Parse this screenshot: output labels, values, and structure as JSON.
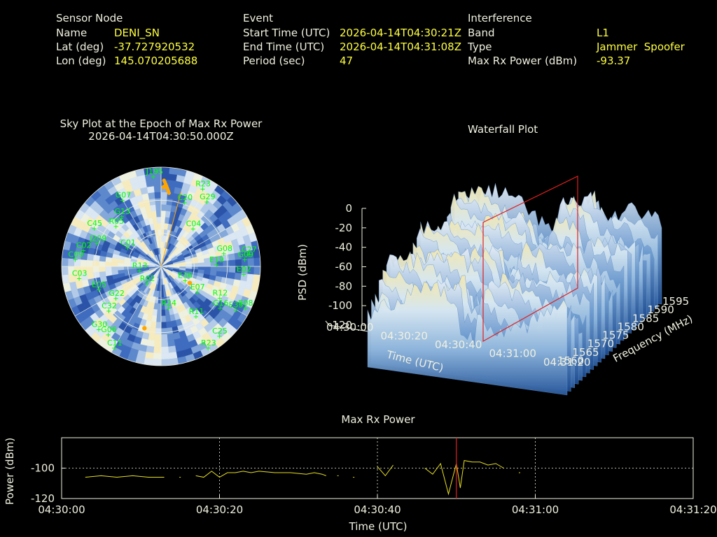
{
  "sensor": {
    "heading": "Sensor Node",
    "name_label": "Name",
    "name_value": "DENI_SN",
    "lat_label": "Lat (deg)",
    "lat_value": "-37.727920532",
    "lon_label": "Lon (deg)",
    "lon_value": "145.070205688"
  },
  "event": {
    "heading": "Event",
    "start_label": "Start Time (UTC)",
    "start_value": "2026-04-14T04:30:21Z",
    "end_label": "End Time (UTC)",
    "end_value": "2026-04-14T04:31:08Z",
    "period_label": "Period (sec)",
    "period_value": "47"
  },
  "interference": {
    "heading": "Interference",
    "band_label": "Band",
    "band_value": "L1",
    "type_label": "Type",
    "type_value": "Jammer  Spoofer",
    "power_label": "Max Rx Power (dBm)",
    "power_value": "-93.37"
  },
  "colors": {
    "label": "#f0f0e0",
    "value": "#ffff40",
    "sat": "#00ff00",
    "jam": "#ffa500",
    "marker": "#dd2020",
    "trace": "#e8e020"
  },
  "skyplot": {
    "title": "Sky Plot at the Epoch of Max Rx Power",
    "subtitle": "2026-04-14T04:30:50.000Z",
    "satellites": [
      {
        "id": "J195",
        "az": 355,
        "el": 82
      },
      {
        "id": "R23",
        "az": 28,
        "el": 80
      },
      {
        "id": "G29",
        "az": 35,
        "el": 72
      },
      {
        "id": "G07",
        "az": 330,
        "el": 70
      },
      {
        "id": "C20",
        "az": 20,
        "el": 62
      },
      {
        "id": "C04",
        "az": 40,
        "el": 45
      },
      {
        "id": "G13",
        "az": 322,
        "el": 58
      },
      {
        "id": "C45",
        "az": 300,
        "el": 70
      },
      {
        "id": "R05",
        "az": 312,
        "el": 55
      },
      {
        "id": "J209",
        "az": 290,
        "el": 62
      },
      {
        "id": "C02",
        "az": 282,
        "el": 72
      },
      {
        "id": "C09",
        "az": 275,
        "el": 78
      },
      {
        "id": "C27",
        "az": 82,
        "el": 80
      },
      {
        "id": "G09",
        "az": 85,
        "el": 76
      },
      {
        "id": "G08",
        "az": 78,
        "el": 58
      },
      {
        "id": "E19",
        "az": 88,
        "el": 50
      },
      {
        "id": "E02",
        "az": 95,
        "el": 75
      },
      {
        "id": "R12",
        "az": 118,
        "el": 60
      },
      {
        "id": "E07",
        "az": 125,
        "el": 40
      },
      {
        "id": "G16",
        "az": 125,
        "el": 65
      },
      {
        "id": "R11",
        "az": 145,
        "el": 55
      },
      {
        "id": "E33",
        "az": 120,
        "el": 78
      },
      {
        "id": "E08",
        "az": 116,
        "el": 85
      },
      {
        "id": "C25",
        "az": 140,
        "el": 82
      },
      {
        "id": "R24",
        "az": 170,
        "el": 38
      },
      {
        "id": "R23",
        "az": 150,
        "el": 85
      },
      {
        "id": "R02",
        "az": 220,
        "el": 20
      },
      {
        "id": "G22",
        "az": 235,
        "el": 50
      },
      {
        "id": "C32",
        "az": 230,
        "el": 62
      },
      {
        "id": "G30",
        "az": 225,
        "el": 80
      },
      {
        "id": "G06",
        "az": 218,
        "el": 78
      },
      {
        "id": "C11",
        "az": 210,
        "el": 85
      },
      {
        "id": "R13",
        "az": 260,
        "el": 20
      },
      {
        "id": "C03",
        "az": 262,
        "el": 75
      },
      {
        "id": "E36",
        "az": 120,
        "el": 25
      },
      {
        "id": "E05",
        "az": 250,
        "el": 60
      },
      {
        "id": "C01",
        "az": 300,
        "el": 35
      }
    ],
    "jam_points": [
      {
        "az": 2,
        "el": 72
      },
      {
        "az": 120,
        "el": 30
      },
      {
        "az": 195,
        "el": 58
      }
    ],
    "epoch_line": {
      "az": 15,
      "el_from": 0,
      "el_to": 70
    }
  },
  "waterfall": {
    "title": "Waterfall Plot",
    "zlabel": "PSD (dBm)",
    "xlabel": "Time (UTC)",
    "ylabel": "Frequency (MHz)",
    "z_ticks": [
      "0",
      "-20",
      "-40",
      "-60",
      "-80",
      "-100",
      "-120"
    ],
    "x_ticks": [
      "04:30:00",
      "04:30:20",
      "04:30:40",
      "04:31:00",
      "04:31:20"
    ],
    "y_ticks": [
      "1560",
      "1565",
      "1570",
      "1575",
      "1580",
      "1585",
      "1590",
      "1595"
    ]
  },
  "chart_data": {
    "type": "line",
    "title": "Max Rx Power",
    "xlabel": "Time (UTC)",
    "ylabel": "Power (dBm)",
    "xlim": [
      0,
      80
    ],
    "ylim": [
      -120,
      -80
    ],
    "x_tick_labels": [
      "04:30:00",
      "04:30:20",
      "04:30:40",
      "04:31:00",
      "04:31:20"
    ],
    "y_tick_labels": [
      "-100",
      "-120"
    ],
    "marker_t": 50,
    "series": [
      {
        "values": [
          [
            3,
            -106
          ],
          [
            5,
            -105
          ],
          [
            7,
            -106
          ],
          [
            9,
            -105
          ],
          [
            11,
            -106
          ],
          [
            13,
            -106
          ]
        ]
      },
      {
        "values": [
          [
            15,
            -106
          ]
        ]
      },
      {
        "values": [
          [
            17,
            -105
          ],
          [
            18,
            -106
          ],
          [
            19,
            -102
          ],
          [
            20,
            -106
          ],
          [
            21,
            -103
          ],
          [
            22,
            -103
          ],
          [
            23,
            -102
          ],
          [
            24,
            -103
          ],
          [
            25,
            -102
          ],
          [
            27,
            -103
          ],
          [
            29,
            -103
          ],
          [
            31,
            -104
          ],
          [
            32,
            -103
          ],
          [
            33,
            -104
          ],
          [
            33.5,
            -105
          ]
        ]
      },
      {
        "values": [
          [
            35,
            -105
          ]
        ]
      },
      {
        "values": [
          [
            37,
            -106
          ]
        ]
      },
      {
        "values": [
          [
            40,
            -99
          ],
          [
            41,
            -105
          ],
          [
            42,
            -98
          ]
        ]
      },
      {
        "values": [
          [
            46,
            -100
          ],
          [
            47,
            -104
          ],
          [
            48,
            -97
          ],
          [
            49,
            -117
          ],
          [
            50,
            -97
          ],
          [
            50.5,
            -113
          ],
          [
            51,
            -95
          ],
          [
            52,
            -96
          ],
          [
            53,
            -96
          ],
          [
            54,
            -98
          ],
          [
            55,
            -97
          ],
          [
            56,
            -100
          ]
        ]
      },
      {
        "values": [
          [
            58,
            -103
          ]
        ]
      }
    ]
  }
}
